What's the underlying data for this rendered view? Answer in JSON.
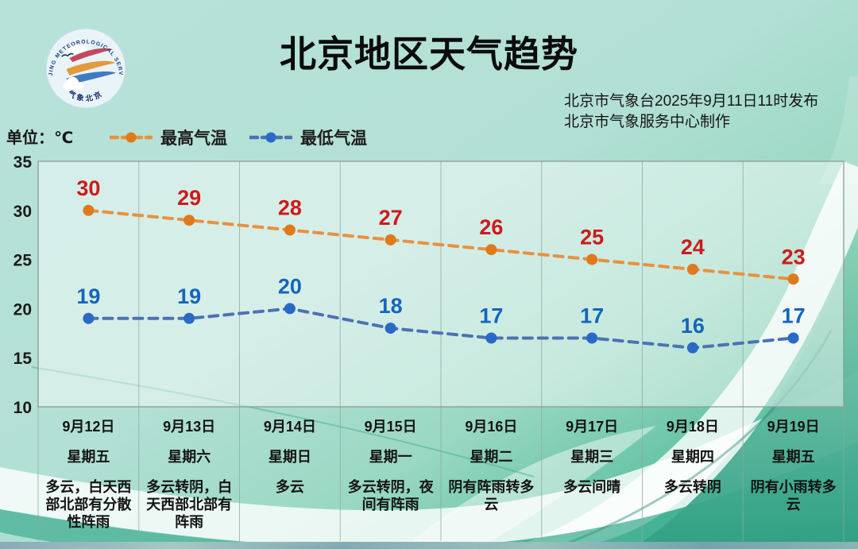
{
  "title": "北京地区天气趋势",
  "publisher": {
    "line1": "北京市气象台2025年9月11日11时发布",
    "line2": "北京市气象服务中心制作"
  },
  "unit_label": "单位：℃",
  "logo": {
    "arc_text": "BEIJING METEOROLOGICAL SERVICE",
    "bottom_text": "气象北京"
  },
  "colors": {
    "background_top": "#b3e0d5",
    "background_bottom_right": "#2ba287",
    "high_temp_label": "#cd1a1a",
    "low_temp_label": "#1565bb",
    "text": "#151515"
  },
  "chart_data": {
    "type": "line",
    "title": "北京地区天气趋势",
    "xlabel": "",
    "ylabel": "单位：℃",
    "categories": [
      "9月12日",
      "9月13日",
      "9月14日",
      "9月15日",
      "9月16日",
      "9月17日",
      "9月18日",
      "9月19日"
    ],
    "weekdays": [
      "星期五",
      "星期六",
      "星期日",
      "星期一",
      "星期二",
      "星期三",
      "星期四",
      "星期五"
    ],
    "series": [
      {
        "name": "最高气温",
        "values": [
          30,
          29,
          28,
          27,
          26,
          25,
          24,
          23
        ],
        "line_color": "#e8913f",
        "dot_color": "#df7a1b",
        "label_color": "#cd1a1a"
      },
      {
        "name": "最低气温",
        "values": [
          19,
          19,
          20,
          18,
          17,
          17,
          16,
          17
        ],
        "line_color": "#4c72b4",
        "dot_color": "#2a6ac6",
        "label_color": "#1565bb"
      }
    ],
    "ylim": [
      10,
      35
    ],
    "yticks": [
      35,
      30,
      25,
      20,
      15,
      10
    ],
    "grid": "vertical-only",
    "line_style": "dashed",
    "legend_position": "top-left"
  },
  "forecast": [
    {
      "date": "9月12日",
      "weekday": "星期五",
      "weather": "多云，白天西部北部有分散性阵雨"
    },
    {
      "date": "9月13日",
      "weekday": "星期六",
      "weather": "多云转阴，白天西部北部有阵雨"
    },
    {
      "date": "9月14日",
      "weekday": "星期日",
      "weather": "多云"
    },
    {
      "date": "9月15日",
      "weekday": "星期一",
      "weather": "多云转阴，夜间有阵雨"
    },
    {
      "date": "9月16日",
      "weekday": "星期二",
      "weather": "阴有阵雨转多云"
    },
    {
      "date": "9月17日",
      "weekday": "星期三",
      "weather": "多云间晴"
    },
    {
      "date": "9月18日",
      "weekday": "星期四",
      "weather": "多云转阴"
    },
    {
      "date": "9月19日",
      "weekday": "星期五",
      "weather": "阴有小雨转多云"
    }
  ]
}
